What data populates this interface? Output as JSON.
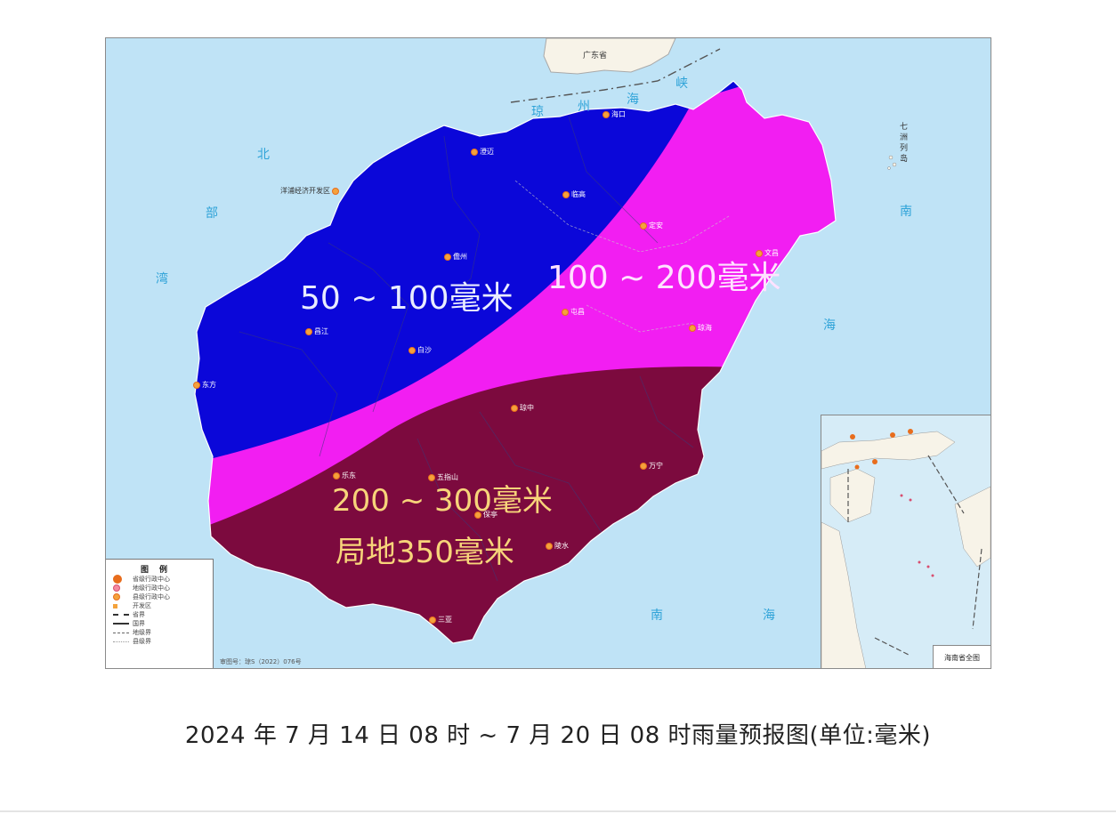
{
  "map": {
    "zones": [
      {
        "label": "50 ~ 100毫米",
        "color": "#0b07d9"
      },
      {
        "label": "100 ~ 200毫米",
        "color": "#f21ef2"
      },
      {
        "label": "200 ~ 300毫米",
        "sublabel": "局地350毫米",
        "color": "#7c0a3e"
      }
    ],
    "land_color": "#f7f3e8",
    "sea_color": "#bfe3f6",
    "sea_labels": [
      "琼",
      "州",
      "海",
      "峡",
      "北",
      "部",
      "湾",
      "南",
      "海",
      "南",
      "海",
      "七",
      "洲",
      "列",
      "岛"
    ],
    "neighbor_label": "广东省",
    "place_labels": [
      "海口",
      "澄迈",
      "临高",
      "儋州",
      "洋浦经济开发区",
      "定安",
      "屯昌",
      "琼海",
      "文昌",
      "万宁",
      "琼中",
      "白沙",
      "昌江",
      "东方",
      "乐东",
      "五指山",
      "保亭",
      "陵水",
      "三亚",
      "琼中"
    ],
    "legend": {
      "title": "图例",
      "items": [
        "省级行政中心",
        "地级行政中心",
        "县级行政中心",
        "开发区",
        "省界",
        "国界",
        "地级界",
        "县级界"
      ]
    },
    "map_number": "审图号：琼S（2022）076号",
    "inset_label": "海南省全图"
  },
  "caption": "2024 年 7 月 14 日 08 时 ~ 7 月 20 日 08 时雨量预报图(单位:毫米)"
}
